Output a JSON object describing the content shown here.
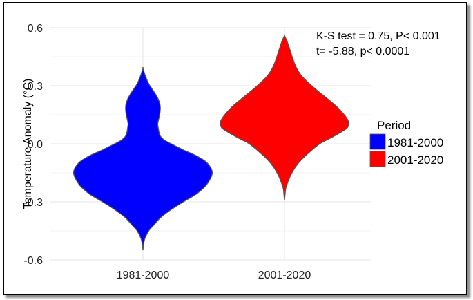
{
  "chart_data": {
    "type": "violin",
    "title": "",
    "xlabel": "",
    "ylabel": "Temperature Anomaly (°C)",
    "ylim": [
      -0.6,
      0.6
    ],
    "yticks": [
      0.6,
      0.3,
      0.0,
      -0.3,
      -0.6
    ],
    "ytick_labels": [
      "0.6",
      "0.3",
      "0.0",
      "-0.3",
      "-0.6"
    ],
    "categories": [
      "1981-2000",
      "2001-2020"
    ],
    "grid": true,
    "annotations": [
      "K-S test = 0.75, P< 0.001",
      "t= -5.88, p< 0.0001"
    ],
    "legend": {
      "title": "Period",
      "placement": "right",
      "entries": [
        {
          "label": "1981-2000",
          "color": "#0000ff"
        },
        {
          "label": "2001-2020",
          "color": "#ff0000"
        }
      ]
    },
    "series": [
      {
        "category": "1981-2000",
        "color": "#0000ff",
        "density": [
          [
            -0.55,
            0.0
          ],
          [
            -0.52,
            0.01
          ],
          [
            -0.49,
            0.03
          ],
          [
            -0.45,
            0.09
          ],
          [
            -0.42,
            0.17
          ],
          [
            -0.38,
            0.28
          ],
          [
            -0.34,
            0.44
          ],
          [
            -0.3,
            0.63
          ],
          [
            -0.26,
            0.83
          ],
          [
            -0.22,
            0.97
          ],
          [
            -0.18,
            1.05
          ],
          [
            -0.15,
            1.08
          ],
          [
            -0.12,
            1.05
          ],
          [
            -0.09,
            0.97
          ],
          [
            -0.06,
            0.82
          ],
          [
            -0.03,
            0.62
          ],
          [
            0.0,
            0.44
          ],
          [
            0.02,
            0.33
          ],
          [
            0.04,
            0.27
          ],
          [
            0.06,
            0.25
          ],
          [
            0.08,
            0.24
          ],
          [
            0.1,
            0.23
          ],
          [
            0.12,
            0.24
          ],
          [
            0.15,
            0.26
          ],
          [
            0.19,
            0.27
          ],
          [
            0.23,
            0.24
          ],
          [
            0.27,
            0.17
          ],
          [
            0.31,
            0.09
          ],
          [
            0.35,
            0.04
          ],
          [
            0.39,
            0.0
          ]
        ]
      },
      {
        "category": "2001-2020",
        "color": "#ff0000",
        "density": [
          [
            -0.29,
            0.0
          ],
          [
            -0.26,
            0.01
          ],
          [
            -0.23,
            0.02
          ],
          [
            -0.2,
            0.05
          ],
          [
            -0.16,
            0.1
          ],
          [
            -0.12,
            0.17
          ],
          [
            -0.08,
            0.27
          ],
          [
            -0.04,
            0.4
          ],
          [
            0.0,
            0.55
          ],
          [
            0.03,
            0.72
          ],
          [
            0.06,
            0.88
          ],
          [
            0.08,
            0.97
          ],
          [
            0.1,
            1.0
          ],
          [
            0.12,
            0.99
          ],
          [
            0.15,
            0.93
          ],
          [
            0.19,
            0.82
          ],
          [
            0.23,
            0.68
          ],
          [
            0.27,
            0.53
          ],
          [
            0.31,
            0.39
          ],
          [
            0.35,
            0.27
          ],
          [
            0.39,
            0.19
          ],
          [
            0.43,
            0.14
          ],
          [
            0.47,
            0.1
          ],
          [
            0.5,
            0.07
          ],
          [
            0.53,
            0.04
          ],
          [
            0.56,
            0.0
          ]
        ]
      }
    ]
  }
}
